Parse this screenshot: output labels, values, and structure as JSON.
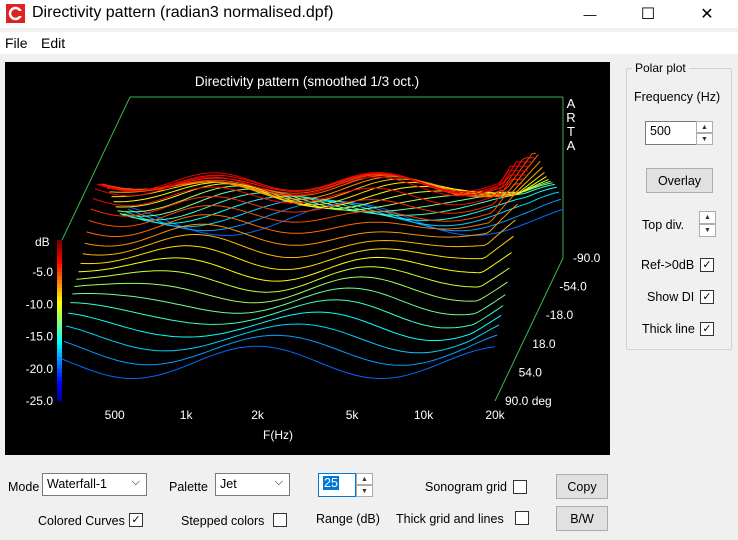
{
  "window": {
    "title": "Directivity pattern (radian3 normalised.dpf)",
    "minimize_glyph": "—",
    "maximize_glyph": "☐",
    "close_glyph": "✕"
  },
  "menu": {
    "file": "File",
    "edit": "Edit"
  },
  "chart_data": {
    "type": "waterfall",
    "title": "Directivity pattern (smoothed 1/3 oct.)",
    "watermark": [
      "A",
      "R",
      "T",
      "A"
    ],
    "xlabel": "F(Hz)",
    "x_ticks": [
      "500",
      "1k",
      "2k",
      "5k",
      "10k",
      "20k"
    ],
    "x_tick_values": [
      500,
      1000,
      2000,
      5000,
      10000,
      20000
    ],
    "xlim": [
      300,
      20000
    ],
    "x_scale": "log",
    "ylabel": "dB",
    "y_ticks": [
      "-5.0",
      "-10.0",
      "-15.0",
      "-20.0",
      "-25.0"
    ],
    "ylim": [
      -25,
      0
    ],
    "z_ticks": [
      "-90.0",
      "-54.0",
      "-18.0",
      "18.0",
      "54.0",
      "90.0 deg"
    ],
    "zlim": [
      -90,
      90
    ],
    "palette": "Jet",
    "colors": {
      "background": "#000000",
      "box": "#39b54a",
      "text": "#ffffff"
    }
  },
  "polar": {
    "group_title": "Polar plot",
    "frequency_label": "Frequency (Hz)",
    "frequency_value": "500",
    "overlay_button": "Overlay",
    "top_div_label": "Top div.",
    "ref_label": "Ref->0dB",
    "ref_checked": "✓",
    "show_di_label": "Show DI",
    "show_di_checked": "✓",
    "thick_line_label": "Thick line",
    "thick_line_checked": "✓"
  },
  "bottom": {
    "mode_label": "Mode",
    "mode_value": "Waterfall-1",
    "palette_label": "Palette",
    "palette_value": "Jet",
    "range_value": "25",
    "range_label": "Range (dB)",
    "sonogram_grid_label": "Sonogram grid",
    "thick_grid_label": "Thick grid and  lines",
    "copy_button": "Copy",
    "bw_button": "B/W",
    "colored_curves_label": "Colored Curves",
    "colored_curves_checked": "✓",
    "stepped_colors_label": "Stepped colors"
  }
}
